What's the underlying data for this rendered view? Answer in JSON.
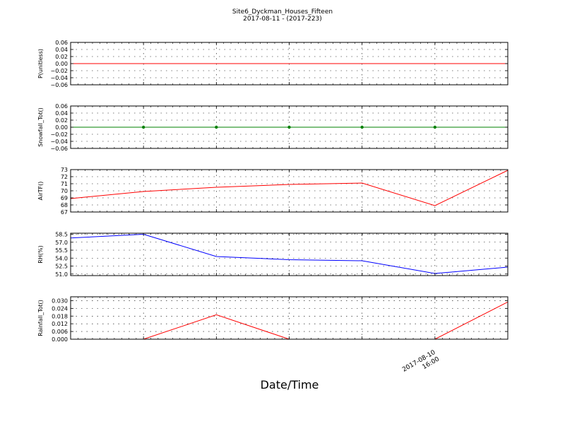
{
  "figure": {
    "title_line1": "Site6_Dyckman_Houses_Fifteen",
    "title_line2": "2017-08-11 - (2017-223)",
    "xlabel": "Date/Time",
    "x_tick_label_line1": "2017-08-10",
    "x_tick_label_line2": "16:00"
  },
  "chart_data": [
    {
      "type": "line",
      "ylabel": "P(unitless)",
      "ylim": [
        -0.06,
        0.06
      ],
      "yticks": [
        0.06,
        0.04,
        0.02,
        0.0,
        -0.02,
        -0.04,
        -0.06
      ],
      "ytick_labels": [
        "0.06",
        "0.04",
        "0.02",
        "0.00",
        "−0.02",
        "−0.04",
        "−0.06"
      ],
      "grid": true,
      "series": [
        {
          "color": "#ff0000",
          "markers": false,
          "values": [
            0,
            0,
            0,
            0,
            0,
            0,
            0
          ]
        }
      ]
    },
    {
      "type": "line",
      "ylabel": "Snowfall_Tot()",
      "ylim": [
        -0.06,
        0.06
      ],
      "yticks": [
        0.06,
        0.04,
        0.02,
        0.0,
        -0.02,
        -0.04,
        -0.06
      ],
      "ytick_labels": [
        "0.06",
        "0.04",
        "0.02",
        "0.00",
        "−0.02",
        "−0.04",
        "−0.06"
      ],
      "grid": true,
      "series": [
        {
          "color": "#008000",
          "markers": true,
          "values": [
            0,
            0,
            0,
            0,
            0,
            0,
            0
          ]
        }
      ]
    },
    {
      "type": "line",
      "ylabel": "AirTF()",
      "ylim": [
        67,
        73
      ],
      "yticks": [
        73,
        72,
        71,
        70,
        69,
        68,
        67
      ],
      "ytick_labels": [
        "73",
        "72",
        "71",
        "70",
        "69",
        "68",
        "67"
      ],
      "grid": true,
      "series": [
        {
          "color": "#ff0000",
          "markers": false,
          "values": [
            68.9,
            69.9,
            70.5,
            70.9,
            71.1,
            67.9,
            72.9
          ]
        }
      ]
    },
    {
      "type": "line",
      "ylabel": "RH(%)",
      "ylim": [
        50.7,
        58.7
      ],
      "yticks": [
        58.5,
        57.0,
        55.5,
        54.0,
        52.5,
        51.0
      ],
      "ytick_labels": [
        "58.5",
        "57.0",
        "55.5",
        "54.0",
        "52.5",
        "51.0"
      ],
      "grid": true,
      "series": [
        {
          "color": "#0000ff",
          "markers": false,
          "values": [
            57.8,
            58.5,
            54.3,
            53.7,
            53.5,
            51.1,
            52.3
          ]
        }
      ]
    },
    {
      "type": "line",
      "ylabel": "Rainfall_Tot()",
      "ylim": [
        0,
        0.033
      ],
      "yticks": [
        0.03,
        0.024,
        0.018,
        0.012,
        0.006,
        0.0
      ],
      "ytick_labels": [
        "0.030",
        "0.024",
        "0.018",
        "0.012",
        "0.006",
        "0.000"
      ],
      "grid": true,
      "series": [
        {
          "color": "#ff0000",
          "markers": false,
          "values": [
            0,
            0,
            0.019,
            0,
            0,
            0,
            0.029
          ]
        }
      ]
    }
  ]
}
